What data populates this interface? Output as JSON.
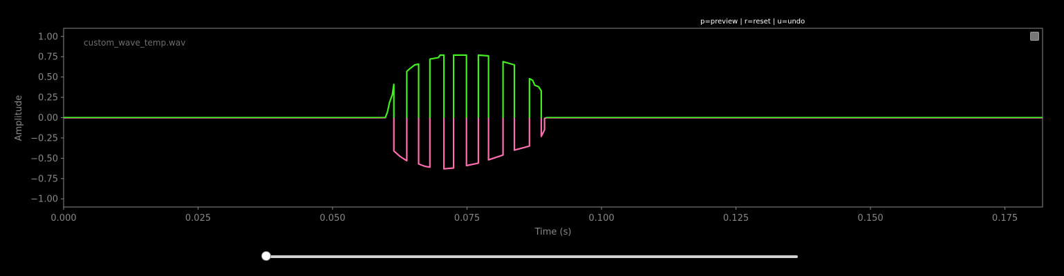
{
  "hint_text": "p=preview | r=reset | u=undo",
  "chart_data": {
    "type": "line",
    "title": "",
    "annotation": "custom_wave_temp.wav",
    "xlabel": "Time (s)",
    "ylabel": "Amplitude",
    "xlim": [
      0,
      0.182
    ],
    "ylim": [
      -1.1,
      1.1
    ],
    "xticks": [
      "0.000",
      "0.025",
      "0.050",
      "0.075",
      "0.100",
      "0.125",
      "0.150",
      "0.175"
    ],
    "xtick_values": [
      0,
      0.025,
      0.05,
      0.075,
      0.1,
      0.125,
      0.15,
      0.175
    ],
    "yticks": [
      "1.00",
      "0.75",
      "0.50",
      "0.25",
      "0.00",
      "−0.25",
      "−0.50",
      "−0.75",
      "−1.00"
    ],
    "ytick_values": [
      1,
      0.75,
      0.5,
      0.25,
      0,
      -0.25,
      -0.5,
      -0.75,
      -1
    ],
    "grid": false,
    "colors": {
      "positive": "#44ee22",
      "negative": "#ff6fb0",
      "axes": "#8a8a8a",
      "text": "#888888"
    },
    "series": [
      {
        "points": [
          [
            0,
            0
          ],
          [
            0.0598,
            0
          ],
          [
            0.0602,
            0.07
          ],
          [
            0.0606,
            0.19
          ],
          [
            0.0611,
            0.28
          ],
          [
            0.0614,
            0.41
          ],
          [
            0.0614,
            -0.41
          ],
          [
            0.0626,
            -0.48
          ],
          [
            0.0638,
            -0.53
          ],
          [
            0.0638,
            0.57
          ],
          [
            0.0645,
            0.61
          ],
          [
            0.0653,
            0.65
          ],
          [
            0.066,
            0.66
          ],
          [
            0.066,
            -0.57
          ],
          [
            0.0672,
            -0.6
          ],
          [
            0.0681,
            -0.61
          ],
          [
            0.0681,
            0.72
          ],
          [
            0.0697,
            0.74
          ],
          [
            0.07,
            0.77
          ],
          [
            0.0707,
            0.77
          ],
          [
            0.0707,
            -0.63
          ],
          [
            0.0725,
            -0.62
          ],
          [
            0.0725,
            0.77
          ],
          [
            0.0749,
            0.77
          ],
          [
            0.0749,
            -0.59
          ],
          [
            0.0771,
            -0.56
          ],
          [
            0.0771,
            0.77
          ],
          [
            0.079,
            0.76
          ],
          [
            0.079,
            -0.52
          ],
          [
            0.0817,
            -0.46
          ],
          [
            0.0817,
            0.69
          ],
          [
            0.0838,
            0.65
          ],
          [
            0.0838,
            -0.4
          ],
          [
            0.0866,
            -0.35
          ],
          [
            0.0866,
            0.48
          ],
          [
            0.0872,
            0.46
          ],
          [
            0.0876,
            0.4
          ],
          [
            0.0883,
            0.38
          ],
          [
            0.0888,
            0.33
          ],
          [
            0.0888,
            -0.23
          ],
          [
            0.0894,
            -0.15
          ],
          [
            0.0894,
            -0.01
          ],
          [
            0.0898,
            0
          ],
          [
            0.182,
            0
          ]
        ]
      }
    ]
  },
  "slider": {
    "value": 0
  }
}
